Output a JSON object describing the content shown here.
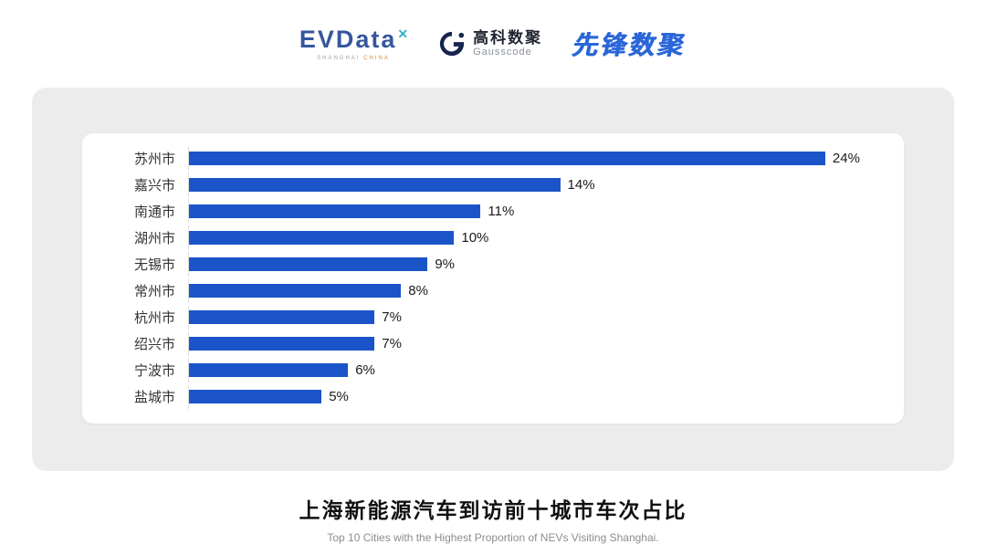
{
  "header": {
    "evdata": {
      "wordmark": "EVData",
      "sup": "✕",
      "tagline_left": "SHANGHAI",
      "tagline_right": "CHINA"
    },
    "gausscode": {
      "cn": "高科数聚",
      "en": "Gausscode"
    },
    "xianfeng": {
      "text": "先锋数聚"
    }
  },
  "chart_data": {
    "type": "bar",
    "orientation": "horizontal",
    "categories": [
      "苏州市",
      "嘉兴市",
      "南通市",
      "湖州市",
      "无锡市",
      "常州市",
      "杭州市",
      "绍兴市",
      "宁波市",
      "盐城市"
    ],
    "values": [
      24,
      14,
      11,
      10,
      9,
      8,
      7,
      7,
      6,
      5
    ],
    "unit": "%",
    "bar_color": "#1b54c8",
    "xlim": [
      0,
      26
    ],
    "grid": false,
    "legend": "none",
    "title": "上海新能源汽车到访前十城市车次占比",
    "subtitle": "Top 10 Cities with the Highest Proportion of  NEVs Visiting Shanghai."
  },
  "footer": {
    "title": "上海新能源汽车到访前十城市车次占比",
    "subtitle": "Top 10 Cities with the Highest Proportion of  NEVs Visiting Shanghai."
  },
  "colors": {
    "bar": "#1b54c8",
    "panel_bg": "#ececec",
    "card_bg": "#ffffff",
    "accent_teal": "#2fb3c9",
    "logo_blue": "#35569e",
    "xianfeng_blue": "#2a66d9"
  }
}
